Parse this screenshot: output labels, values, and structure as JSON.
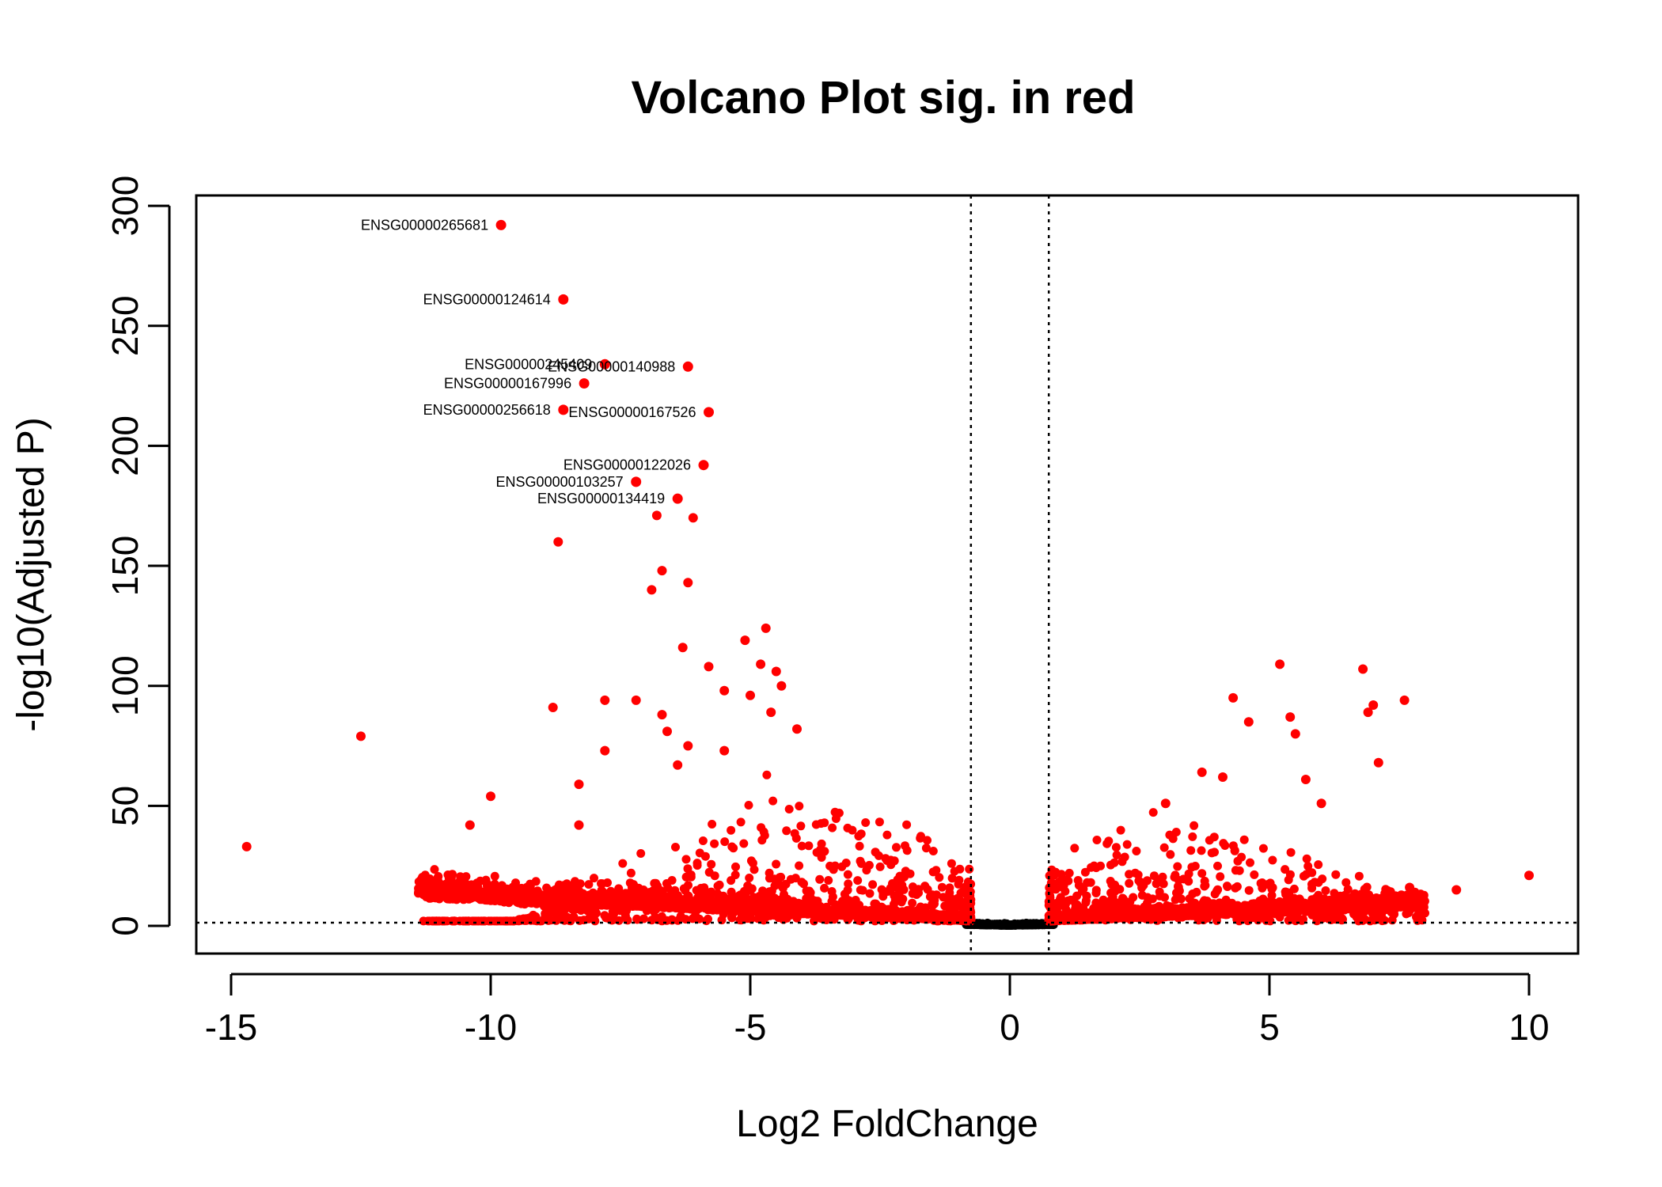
{
  "chart_data": {
    "type": "scatter",
    "title": "Volcano Plot sig. in red",
    "xlabel": "Log2 FoldChange",
    "ylabel": "-log10(Adjusted P)",
    "xlim": [
      -16.35,
      10.95
    ],
    "ylim": [
      -11.5,
      304
    ],
    "x_ticks": [
      -15,
      -10,
      -5,
      0,
      5,
      10
    ],
    "x_tick_labels": [
      "-15",
      "-10",
      "-5",
      "0",
      "5",
      "10"
    ],
    "y_ticks": [
      0,
      50,
      100,
      150,
      200,
      250,
      300
    ],
    "y_tick_labels": [
      "0",
      "50",
      "100",
      "150",
      "200",
      "250",
      "300"
    ],
    "thresholds": {
      "log2fc": [
        -0.75,
        0.75
      ],
      "neg_log10_padj": 1.3,
      "line_style": "dotted"
    },
    "colors": {
      "significant": "#ff0000",
      "not_significant": "#000000"
    },
    "legend": "none",
    "grid": false,
    "labeled_points": [
      {
        "gene": "ENSG00000265681",
        "x": -9.8,
        "y": 292
      },
      {
        "gene": "ENSG00000124614",
        "x": -8.6,
        "y": 261
      },
      {
        "gene": "ENSG00000245409",
        "x": -7.8,
        "y": 234
      },
      {
        "gene": "ENSG00000140988",
        "x": -6.2,
        "y": 233
      },
      {
        "gene": "ENSG00000167996",
        "x": -8.2,
        "y": 226
      },
      {
        "gene": "ENSG00000256618",
        "x": -8.6,
        "y": 215
      },
      {
        "gene": "ENSG00000167526",
        "x": -5.8,
        "y": 214
      },
      {
        "gene": "ENSG00000122026",
        "x": -5.9,
        "y": 192
      },
      {
        "gene": "ENSG00000103257",
        "x": -7.2,
        "y": 185
      },
      {
        "gene": "ENSG00000134419",
        "x": -6.4,
        "y": 178
      }
    ],
    "highlight_points": [
      {
        "x": -14.7,
        "y": 33
      },
      {
        "x": -12.5,
        "y": 79
      },
      {
        "x": -10.4,
        "y": 42
      },
      {
        "x": -10.0,
        "y": 54
      },
      {
        "x": -8.8,
        "y": 91
      },
      {
        "x": -8.7,
        "y": 160
      },
      {
        "x": -8.3,
        "y": 59
      },
      {
        "x": -8.3,
        "y": 42
      },
      {
        "x": -7.8,
        "y": 94
      },
      {
        "x": -7.8,
        "y": 73
      },
      {
        "x": -7.2,
        "y": 94
      },
      {
        "x": -6.9,
        "y": 140
      },
      {
        "x": -6.8,
        "y": 171
      },
      {
        "x": -6.7,
        "y": 148
      },
      {
        "x": -6.7,
        "y": 88
      },
      {
        "x": -6.6,
        "y": 81
      },
      {
        "x": -6.3,
        "y": 116
      },
      {
        "x": -6.2,
        "y": 143
      },
      {
        "x": -6.1,
        "y": 170
      },
      {
        "x": -5.8,
        "y": 108
      },
      {
        "x": -5.5,
        "y": 98
      },
      {
        "x": -5.1,
        "y": 119
      },
      {
        "x": -5.0,
        "y": 96
      },
      {
        "x": -4.8,
        "y": 109
      },
      {
        "x": -4.7,
        "y": 124
      },
      {
        "x": -4.6,
        "y": 89
      },
      {
        "x": -4.5,
        "y": 106
      },
      {
        "x": -4.4,
        "y": 100
      },
      {
        "x": -6.2,
        "y": 75
      },
      {
        "x": -6.4,
        "y": 67
      },
      {
        "x": -5.5,
        "y": 73
      },
      {
        "x": -4.1,
        "y": 82
      },
      {
        "x": 4.3,
        "y": 95
      },
      {
        "x": 4.6,
        "y": 85
      },
      {
        "x": 5.2,
        "y": 109
      },
      {
        "x": 5.4,
        "y": 87
      },
      {
        "x": 5.5,
        "y": 80
      },
      {
        "x": 6.8,
        "y": 107
      },
      {
        "x": 6.9,
        "y": 89
      },
      {
        "x": 7.0,
        "y": 92
      },
      {
        "x": 7.1,
        "y": 68
      },
      {
        "x": 7.6,
        "y": 94
      },
      {
        "x": 5.7,
        "y": 61
      },
      {
        "x": 6.0,
        "y": 51
      },
      {
        "x": 3.7,
        "y": 64
      },
      {
        "x": 4.1,
        "y": 62
      },
      {
        "x": 8.6,
        "y": 15
      },
      {
        "x": 10.0,
        "y": 21
      },
      {
        "x": 7.7,
        "y": 16
      },
      {
        "x": 3.0,
        "y": 51
      }
    ],
    "background_points": {
      "description_visible": false,
      "left_cloud_x_range": [
        -11.4,
        -0.75
      ],
      "right_cloud_x_range": [
        0.75,
        8.0
      ],
      "left_cloud_max_y": 75,
      "right_cloud_max_y": 55
    }
  }
}
